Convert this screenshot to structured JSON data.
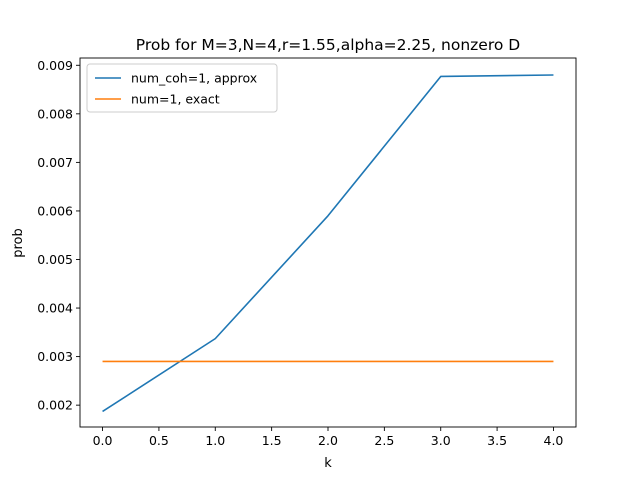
{
  "chart_data": {
    "type": "line",
    "title": "Prob for M=3,N=4,r=1.55,alpha=2.25, nonzero D",
    "xlabel": "k",
    "ylabel": "prob",
    "xlim": [
      -0.2,
      4.2
    ],
    "ylim": [
      0.00155,
      0.00915
    ],
    "xticks": [
      0.0,
      0.5,
      1.0,
      1.5,
      2.0,
      2.5,
      3.0,
      3.5,
      4.0
    ],
    "xtick_labels": [
      "0.0",
      "0.5",
      "1.0",
      "1.5",
      "2.0",
      "2.5",
      "3.0",
      "3.5",
      "4.0"
    ],
    "yticks": [
      0.002,
      0.003,
      0.004,
      0.005,
      0.006,
      0.007,
      0.008,
      0.009
    ],
    "ytick_labels": [
      "0.002",
      "0.003",
      "0.004",
      "0.005",
      "0.006",
      "0.007",
      "0.008",
      "0.009"
    ],
    "grid": false,
    "legend_position": "top-left",
    "x": [
      0,
      1,
      2,
      3,
      4
    ],
    "series": [
      {
        "name": "num_coh=1, approx",
        "color": "#1f77b4",
        "values": [
          0.00187,
          0.00337,
          0.0059,
          0.00877,
          0.0088
        ]
      },
      {
        "name": "num=1, exact",
        "color": "#ff7f0e",
        "values": [
          0.0029,
          0.0029,
          0.0029,
          0.0029,
          0.0029
        ]
      }
    ]
  }
}
